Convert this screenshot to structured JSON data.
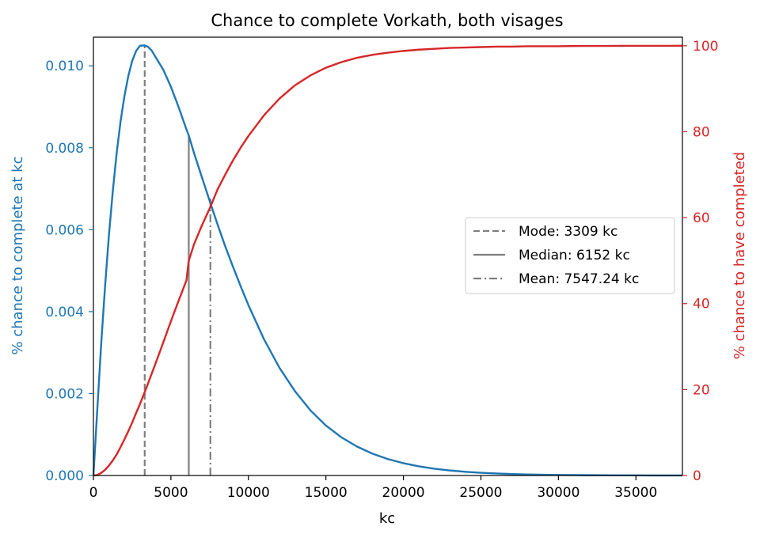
{
  "chart_data": {
    "type": "line",
    "title": "Chance to complete Vorkath, both visages",
    "xlabel": "kc",
    "ylabel_left": "% chance to complete at kc",
    "ylabel_right": "% chance to have completed",
    "xlim": [
      0,
      38000
    ],
    "ylim_left": [
      0,
      0.0107
    ],
    "ylim_right": [
      0,
      102
    ],
    "x_ticks": [
      0,
      5000,
      10000,
      15000,
      20000,
      25000,
      30000,
      35000
    ],
    "y_left_ticks": [
      "0.000",
      "0.002",
      "0.004",
      "0.006",
      "0.008",
      "0.010"
    ],
    "y_right_ticks": [
      0,
      20,
      40,
      60,
      80,
      100
    ],
    "grid": false,
    "legend_position": "center-right",
    "colors": {
      "left": "#1f77b4",
      "right": "#d62728",
      "markers": "#7f7f7f"
    },
    "series": [
      {
        "name": "% chance to complete at kc",
        "axis": "left",
        "x": [
          0,
          250,
          500,
          750,
          1000,
          1250,
          1500,
          1750,
          2000,
          2250,
          2500,
          2750,
          3000,
          3309,
          3500,
          3750,
          4000,
          4500,
          5000,
          5500,
          6000,
          6152,
          6500,
          7000,
          7547,
          8000,
          8500,
          9000,
          9500,
          10000,
          11000,
          12000,
          13000,
          14000,
          15000,
          16000,
          17000,
          18000,
          19000,
          20000,
          21000,
          22000,
          23000,
          24000,
          25000,
          26000,
          27000,
          28000,
          29000,
          30000,
          31000,
          32000,
          33000,
          34000,
          35000,
          36000,
          37000,
          38000
        ],
        "values": [
          0.0,
          0.00161,
          0.0032,
          0.00461,
          0.00586,
          0.00694,
          0.00787,
          0.00864,
          0.00926,
          0.00975,
          0.01012,
          0.01036,
          0.01049,
          0.0105,
          0.01047,
          0.01038,
          0.01022,
          0.00991,
          0.00949,
          0.00899,
          0.00845,
          0.0083,
          0.00786,
          0.00728,
          0.00665,
          0.00614,
          0.0056,
          0.0051,
          0.00462,
          0.00416,
          0.00333,
          0.00263,
          0.00206,
          0.00159,
          0.00122,
          0.000932,
          0.000707,
          0.000534,
          0.000401,
          0.0003,
          0.000224,
          0.000166,
          0.000123,
          9.08e-05,
          6.68e-05,
          4.9e-05,
          3.58e-05,
          2.61e-05,
          1.9e-05,
          1.38e-05,
          1e-05,
          7.2e-06,
          5.2e-06,
          3.8e-06,
          2.7e-06,
          1.9e-06,
          1.4e-06,
          1e-06
        ]
      },
      {
        "name": "% chance to have completed",
        "axis": "right",
        "x": [
          0,
          250,
          500,
          750,
          1000,
          1250,
          1500,
          1750,
          2000,
          2250,
          2500,
          2750,
          3000,
          3309,
          3500,
          3750,
          4000,
          4500,
          5000,
          5500,
          6000,
          6152,
          6500,
          7000,
          7547,
          8000,
          8500,
          9000,
          9500,
          10000,
          11000,
          12000,
          13000,
          14000,
          15000,
          16000,
          17000,
          18000,
          19000,
          20000,
          21000,
          22000,
          23000,
          24000,
          25000,
          26000,
          27000,
          28000,
          29000,
          30000,
          31000,
          32000,
          33000,
          34000,
          35000,
          36000,
          37000,
          38000
        ],
        "values": [
          0.0,
          0.1,
          0.6,
          1.3,
          2.3,
          3.5,
          4.9,
          6.6,
          8.4,
          10.3,
          12.3,
          14.5,
          16.6,
          19.4,
          21.2,
          23.6,
          26.0,
          30.9,
          35.9,
          40.7,
          45.4,
          50.0,
          53.9,
          58.2,
          62.5,
          66.5,
          70.0,
          73.3,
          76.3,
          79.0,
          83.8,
          87.7,
          90.8,
          93.1,
          94.9,
          96.2,
          97.2,
          97.9,
          98.4,
          98.8,
          99.1,
          99.3,
          99.5,
          99.6,
          99.7,
          99.8,
          99.8,
          99.9,
          99.9,
          99.9,
          99.95,
          99.96,
          99.97,
          99.98,
          99.98,
          99.99,
          99.99,
          100.0
        ]
      }
    ],
    "markers": [
      {
        "label": "Mode: 3309 kc",
        "x": 3309,
        "y_top": 0.0105,
        "style": "dashed"
      },
      {
        "label": "Median: 6152 kc",
        "x": 6152,
        "y_top": 0.0083,
        "style": "solid"
      },
      {
        "label": "Mean: 7547.24 kc",
        "x": 7547.24,
        "y_top": 0.0068,
        "style": "dashdot"
      }
    ]
  }
}
